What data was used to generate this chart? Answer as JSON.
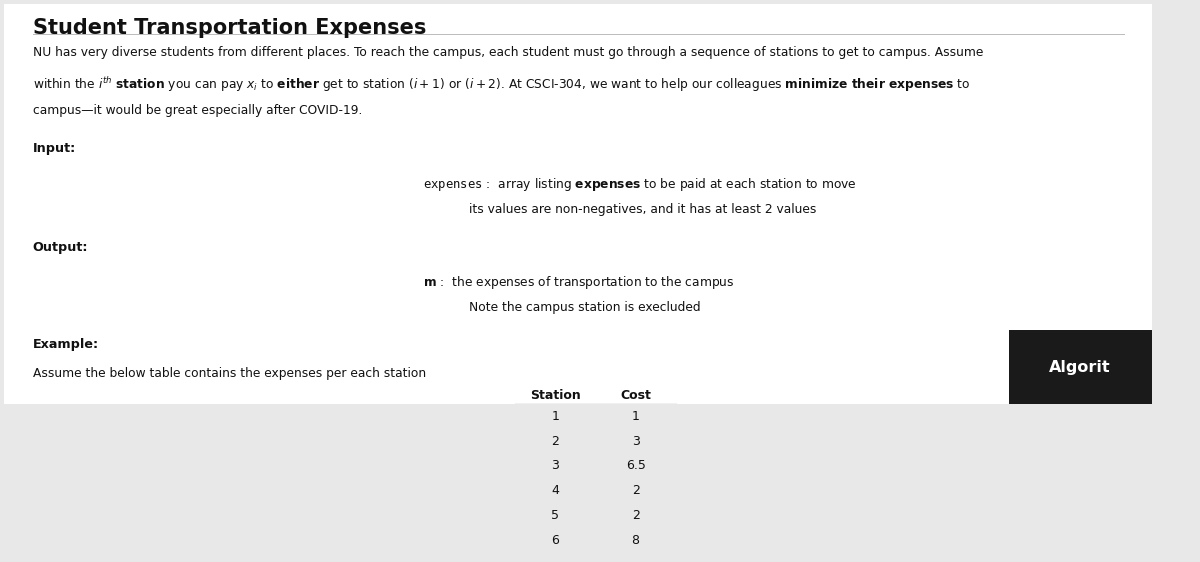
{
  "title": "Student Transportation Expenses",
  "bg_color": "#e8e8e8",
  "content_bg": "#ffffff",
  "line1": "NU has very diverse students from different places. To reach the campus, each student must go through a sequence of stations to get to campus. Assume",
  "line3": "campus—it would be great especially after COVID-19.",
  "input_label": "Input:",
  "input_line1_pre": "expenses",
  "input_line1_mid": " :  array listing ",
  "input_line1_bold": "expenses",
  "input_line1_post": " to be paid at each station to move",
  "input_line2": "its values are non-negatives, and it has at least 2 values",
  "output_label": "Output:",
  "output_line1_bold": "m",
  "output_line1_post": " :  the expenses of transportation to the campus",
  "output_line2": "Note the campus station is execluded",
  "example_label": "Example:",
  "example_text": "Assume the below table contains the expenses per each station",
  "table_headers": [
    "Station",
    "Cost"
  ],
  "table_rows": [
    [
      "1",
      "1"
    ],
    [
      "2",
      "3"
    ],
    [
      "3",
      "6.5"
    ],
    [
      "4",
      "2"
    ],
    [
      "5",
      "2"
    ],
    [
      "6",
      "8"
    ]
  ],
  "table_row_colors": [
    "#ffffff",
    "#e0e0e0",
    "#ffffff",
    "#e0e0e0",
    "#ffffff",
    "#e0e0e0"
  ],
  "corner_label": "Algorit",
  "corner_bg": "#1a1a1a",
  "corner_text_color": "#ffffff"
}
